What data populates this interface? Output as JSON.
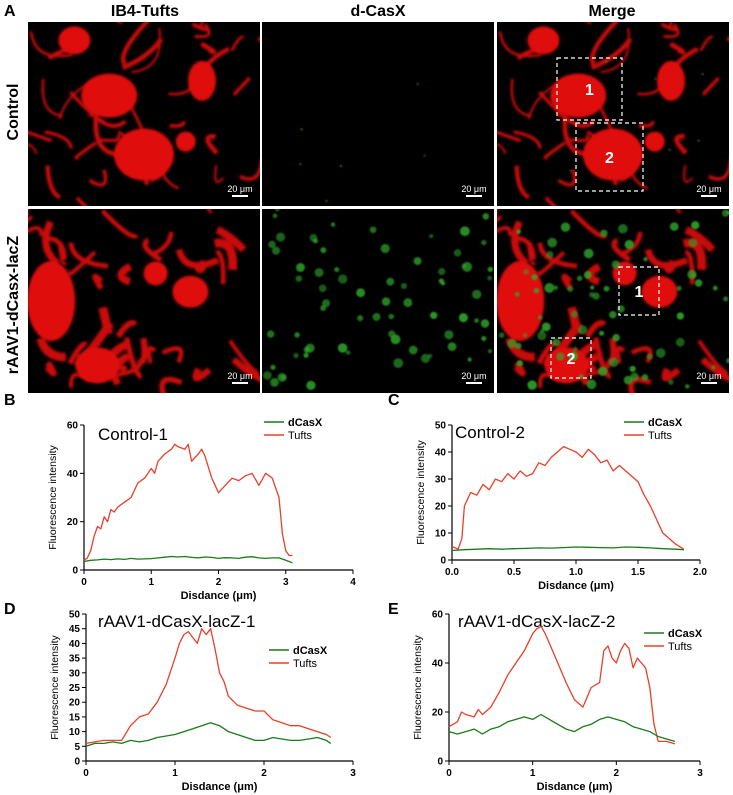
{
  "panel_a": {
    "letter": "A",
    "columns": [
      "IB4-Tufts",
      "d-CasX",
      "Merge"
    ],
    "rows": [
      "Control",
      "rAAV1-dCasx-lacZ"
    ],
    "scale_bar": "20 μm",
    "roi_labels": [
      "1",
      "2"
    ],
    "colors": {
      "red_channel": "#e01010",
      "green_channel": "#2fa82a",
      "background": "#000000"
    }
  },
  "chart_data": [
    {
      "panel": "B",
      "type": "line",
      "title": "Control-1",
      "xlabel": "Disdance (μm)",
      "ylabel": "Fluorescence intensity",
      "xlim": [
        0,
        4
      ],
      "ylim": [
        0,
        60
      ],
      "xticks": [
        0,
        1,
        2,
        3,
        4
      ],
      "yticks": [
        0,
        20,
        40,
        60
      ],
      "legend_position": "top-right",
      "series": [
        {
          "name": "dCasX",
          "color": "#1a7a1a",
          "x": [
            0,
            0.1,
            0.2,
            0.3,
            0.4,
            0.5,
            0.6,
            0.7,
            0.8,
            0.9,
            1,
            1.1,
            1.2,
            1.3,
            1.4,
            1.5,
            1.6,
            1.7,
            1.8,
            1.9,
            2,
            2.1,
            2.2,
            2.3,
            2.4,
            2.5,
            2.6,
            2.7,
            2.8,
            2.9,
            3.0,
            3.05,
            3.1
          ],
          "y": [
            3.5,
            4,
            4.2,
            4.5,
            4.3,
            4.6,
            4.4,
            4.8,
            4.5,
            4.6,
            4.7,
            5,
            5.3,
            5.6,
            5.4,
            5.6,
            5.2,
            5,
            5.4,
            5.2,
            4.8,
            5.1,
            5,
            4.8,
            5.3,
            5.5,
            5,
            4.8,
            5,
            5,
            4,
            3.5,
            3
          ]
        },
        {
          "name": "Tufts",
          "color": "#e8402a",
          "x": [
            0,
            0.05,
            0.1,
            0.15,
            0.2,
            0.25,
            0.3,
            0.35,
            0.4,
            0.45,
            0.5,
            0.6,
            0.7,
            0.75,
            0.8,
            0.9,
            1.0,
            1.05,
            1.1,
            1.2,
            1.3,
            1.35,
            1.4,
            1.5,
            1.55,
            1.6,
            1.7,
            1.75,
            1.8,
            1.9,
            2.0,
            2.1,
            2.2,
            2.3,
            2.4,
            2.5,
            2.6,
            2.7,
            2.8,
            2.9,
            2.95,
            3.0,
            3.05,
            3.1
          ],
          "y": [
            4,
            5,
            8,
            14,
            18,
            17,
            22,
            20,
            25,
            24,
            26,
            28,
            30,
            33,
            36,
            38,
            42,
            40,
            45,
            48,
            50,
            52,
            51,
            50,
            52,
            45,
            48,
            50,
            47,
            38,
            32,
            35,
            38,
            37,
            39,
            40,
            35,
            40,
            38,
            30,
            15,
            8,
            6,
            6
          ]
        }
      ]
    },
    {
      "panel": "C",
      "type": "line",
      "title": "Control-2",
      "xlabel": "Disdance (μm)",
      "ylabel": "Fluorescence intensity",
      "xlim": [
        0,
        2
      ],
      "ylim": [
        0,
        50
      ],
      "xticks": [
        0.0,
        0.5,
        1.0,
        1.5,
        2.0
      ],
      "xtick_labels": [
        "0.0",
        "0.5",
        "1.0",
        "1.5",
        "2.0"
      ],
      "yticks": [
        0,
        10,
        20,
        30,
        40,
        50
      ],
      "legend_position": "top-right",
      "series": [
        {
          "name": "dCasX",
          "color": "#1a7a1a",
          "x": [
            0,
            0.1,
            0.2,
            0.3,
            0.4,
            0.5,
            0.6,
            0.7,
            0.8,
            0.9,
            1.0,
            1.1,
            1.2,
            1.3,
            1.4,
            1.5,
            1.6,
            1.7,
            1.8,
            1.87
          ],
          "y": [
            3.5,
            3.8,
            4,
            4.2,
            4,
            4.2,
            4.3,
            4.5,
            4.4,
            4.6,
            4.8,
            4.7,
            4.6,
            4.5,
            4.8,
            4.7,
            4.5,
            4.2,
            4,
            3.8
          ]
        },
        {
          "name": "Tufts",
          "color": "#e8402a",
          "x": [
            0,
            0.05,
            0.08,
            0.1,
            0.15,
            0.2,
            0.25,
            0.3,
            0.35,
            0.4,
            0.45,
            0.5,
            0.55,
            0.6,
            0.65,
            0.7,
            0.75,
            0.8,
            0.85,
            0.9,
            0.95,
            1.0,
            1.05,
            1.1,
            1.15,
            1.2,
            1.25,
            1.3,
            1.35,
            1.4,
            1.45,
            1.5,
            1.55,
            1.6,
            1.65,
            1.7,
            1.75,
            1.8,
            1.87
          ],
          "y": [
            5,
            4,
            8,
            20,
            25,
            24,
            28,
            26,
            30,
            29,
            32,
            30,
            33,
            31,
            32,
            36,
            35,
            38,
            40,
            42,
            41,
            40,
            38,
            41,
            39,
            36,
            37,
            33,
            35,
            33,
            31,
            29,
            24,
            20,
            15,
            10,
            8,
            6,
            4
          ]
        }
      ]
    },
    {
      "panel": "D",
      "type": "line",
      "title": "rAAV1-dCasX-lacZ-1",
      "xlabel": "Disdance (μm)",
      "ylabel": "Fluorescence intensity",
      "xlim": [
        0,
        3
      ],
      "ylim": [
        0,
        50
      ],
      "xticks": [
        0,
        1,
        2,
        3
      ],
      "yticks": [
        0,
        5,
        10,
        15,
        20,
        25,
        30,
        35,
        40,
        45,
        50
      ],
      "legend_position": "right",
      "series": [
        {
          "name": "dCasX",
          "color": "#1a7a1a",
          "x": [
            0,
            0.1,
            0.2,
            0.3,
            0.4,
            0.5,
            0.6,
            0.7,
            0.8,
            0.9,
            1.0,
            1.1,
            1.2,
            1.3,
            1.4,
            1.5,
            1.6,
            1.7,
            1.8,
            1.9,
            2.0,
            2.1,
            2.2,
            2.3,
            2.4,
            2.5,
            2.6,
            2.7,
            2.75
          ],
          "y": [
            5,
            6,
            6,
            6.5,
            6,
            7,
            6.5,
            7,
            8,
            8.5,
            9,
            10,
            11,
            12,
            13,
            12,
            10,
            9,
            8,
            7,
            7,
            8,
            7.5,
            7,
            7,
            7.5,
            8,
            7,
            6
          ]
        },
        {
          "name": "Tufts",
          "color": "#e8402a",
          "x": [
            0,
            0.1,
            0.2,
            0.3,
            0.4,
            0.5,
            0.6,
            0.7,
            0.8,
            0.9,
            1.0,
            1.05,
            1.1,
            1.15,
            1.2,
            1.25,
            1.3,
            1.35,
            1.4,
            1.45,
            1.5,
            1.55,
            1.6,
            1.7,
            1.8,
            1.9,
            2.0,
            2.1,
            2.2,
            2.3,
            2.4,
            2.5,
            2.6,
            2.7,
            2.75
          ],
          "y": [
            6,
            6.5,
            7,
            7,
            7,
            12,
            15,
            16,
            20,
            26,
            35,
            40,
            43,
            44,
            42,
            40,
            45,
            43,
            45,
            38,
            30,
            27,
            22,
            19,
            18,
            17,
            17,
            14,
            13,
            12,
            12,
            11,
            10,
            9,
            8
          ]
        }
      ]
    },
    {
      "panel": "E",
      "type": "line",
      "title": "rAAV1-dCasX-lacZ-2",
      "xlabel": "Disdance (μm)",
      "ylabel": "Fluorescence intensity",
      "xlim": [
        0,
        3
      ],
      "ylim": [
        0,
        60
      ],
      "xticks": [
        0,
        1,
        2,
        3
      ],
      "yticks": [
        0,
        20,
        40,
        60
      ],
      "legend_position": "top-right",
      "series": [
        {
          "name": "dCasX",
          "color": "#1a7a1a",
          "x": [
            0,
            0.1,
            0.2,
            0.3,
            0.4,
            0.5,
            0.6,
            0.7,
            0.8,
            0.9,
            1.0,
            1.1,
            1.2,
            1.3,
            1.4,
            1.5,
            1.6,
            1.7,
            1.8,
            1.9,
            2.0,
            2.1,
            2.2,
            2.3,
            2.4,
            2.5,
            2.6,
            2.7
          ],
          "y": [
            12,
            11,
            12,
            13,
            11,
            13,
            14,
            16,
            17,
            18,
            17,
            19,
            17,
            15,
            13,
            12,
            14,
            15,
            17,
            18,
            17,
            16,
            14,
            13,
            12,
            10,
            9,
            8
          ]
        },
        {
          "name": "Tufts",
          "color": "#e8402a",
          "x": [
            0,
            0.1,
            0.15,
            0.2,
            0.3,
            0.35,
            0.4,
            0.5,
            0.6,
            0.7,
            0.8,
            0.9,
            1.0,
            1.05,
            1.1,
            1.15,
            1.2,
            1.3,
            1.4,
            1.5,
            1.6,
            1.7,
            1.8,
            1.85,
            1.9,
            1.95,
            2.0,
            2.05,
            2.1,
            2.15,
            2.2,
            2.25,
            2.3,
            2.35,
            2.4,
            2.45,
            2.5,
            2.6,
            2.7
          ],
          "y": [
            14,
            16,
            20,
            19,
            18,
            21,
            19,
            22,
            28,
            35,
            40,
            45,
            52,
            54,
            55,
            52,
            48,
            40,
            32,
            25,
            22,
            30,
            32,
            45,
            47,
            42,
            40,
            45,
            48,
            46,
            38,
            42,
            40,
            38,
            30,
            15,
            8,
            8,
            7
          ]
        }
      ]
    }
  ]
}
